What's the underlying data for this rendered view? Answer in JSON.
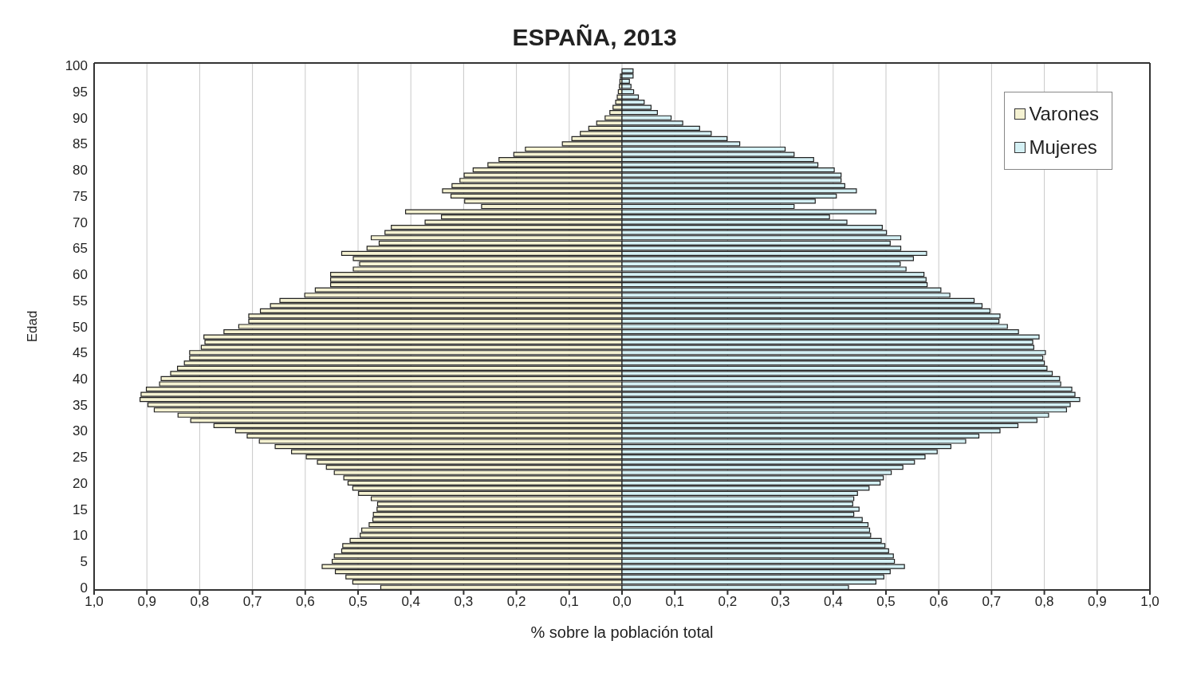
{
  "chart_data": {
    "type": "bar",
    "orientation": "horizontal",
    "stacked": true,
    "title": "ESPAÑA, 2013",
    "xlabel": "% sobre la población total",
    "ylabel": "Edad",
    "categories": [
      "100",
      null,
      null,
      null,
      null,
      "95",
      null,
      null,
      null,
      null,
      "90",
      null,
      null,
      null,
      null,
      "85",
      null,
      null,
      null,
      null,
      "80",
      null,
      null,
      null,
      null,
      "75",
      null,
      null,
      null,
      null,
      "70",
      null,
      null,
      null,
      null,
      "65",
      null,
      null,
      null,
      null,
      "60",
      null,
      null,
      null,
      null,
      "55",
      null,
      null,
      null,
      null,
      "50",
      null,
      null,
      null,
      null,
      "45",
      null,
      null,
      null,
      null,
      "40",
      null,
      null,
      null,
      null,
      "35",
      null,
      null,
      null,
      null,
      "30",
      null,
      null,
      null,
      null,
      "25",
      null,
      null,
      null,
      null,
      "20",
      null,
      null,
      null,
      null,
      "15",
      null,
      null,
      null,
      null,
      "10",
      null,
      null,
      null,
      null,
      "5",
      null,
      null,
      null,
      null,
      "0"
    ],
    "series": [
      {
        "name": "Varones",
        "color": "#f5f2d2",
        "values": [
          null,
          null,
          -0.003,
          -0.004,
          -0.005,
          -0.007,
          -0.009,
          -0.012,
          -0.017,
          -0.023,
          -0.032,
          -0.048,
          -0.063,
          -0.079,
          -0.095,
          -0.113,
          -0.183,
          -0.205,
          -0.233,
          -0.254,
          -0.282,
          -0.299,
          -0.307,
          -0.322,
          -0.34,
          -0.324,
          -0.298,
          -0.266,
          -0.41,
          -0.342,
          -0.373,
          -0.437,
          -0.449,
          -0.475,
          -0.46,
          -0.483,
          -0.531,
          -0.509,
          -0.497,
          -0.509,
          -0.552,
          -0.552,
          -0.552,
          -0.581,
          -0.601,
          -0.648,
          -0.666,
          -0.685,
          -0.707,
          -0.707,
          -0.726,
          -0.754,
          -0.792,
          -0.79,
          -0.797,
          -0.819,
          -0.819,
          -0.829,
          -0.842,
          -0.855,
          -0.873,
          -0.876,
          -0.901,
          -0.911,
          -0.913,
          -0.898,
          -0.886,
          -0.841,
          -0.817,
          -0.773,
          -0.732,
          -0.71,
          -0.687,
          -0.657,
          -0.626,
          -0.598,
          -0.577,
          -0.56,
          -0.545,
          -0.527,
          -0.519,
          -0.51,
          -0.499,
          -0.475,
          -0.463,
          -0.464,
          -0.471,
          -0.472,
          -0.479,
          -0.493,
          -0.496,
          -0.515,
          -0.529,
          -0.531,
          -0.545,
          -0.549,
          -0.568,
          -0.543,
          -0.523,
          -0.51,
          -0.457
        ]
      },
      {
        "name": "Mujeres",
        "color": "#d4f0f4",
        "values": [
          null,
          0.021,
          0.021,
          0.014,
          0.017,
          0.022,
          0.031,
          0.042,
          0.055,
          0.067,
          0.093,
          0.115,
          0.147,
          0.169,
          0.199,
          0.223,
          0.309,
          0.326,
          0.363,
          0.371,
          0.402,
          0.415,
          0.415,
          0.422,
          0.444,
          0.406,
          0.366,
          0.326,
          0.481,
          0.393,
          0.426,
          0.493,
          0.501,
          0.528,
          0.508,
          0.528,
          0.577,
          0.552,
          0.527,
          0.538,
          0.572,
          0.576,
          0.578,
          0.604,
          0.621,
          0.667,
          0.682,
          0.697,
          0.716,
          0.714,
          0.73,
          0.751,
          0.79,
          0.778,
          0.78,
          0.802,
          0.797,
          0.8,
          0.805,
          0.815,
          0.829,
          0.831,
          0.852,
          0.858,
          0.867,
          0.849,
          0.842,
          0.808,
          0.786,
          0.75,
          0.716,
          0.676,
          0.651,
          0.623,
          0.597,
          0.574,
          0.554,
          0.532,
          0.51,
          0.495,
          0.489,
          0.468,
          0.446,
          0.439,
          0.437,
          0.449,
          0.439,
          0.455,
          0.466,
          0.469,
          0.471,
          0.491,
          0.498,
          0.505,
          0.514,
          0.516,
          0.535,
          0.508,
          0.496,
          0.481,
          0.429
        ]
      }
    ],
    "xlim": [
      -1,
      1
    ],
    "xticks": [
      {
        "value": -1,
        "label": "1,0"
      },
      {
        "value": -0.9,
        "label": "0,9"
      },
      {
        "value": -0.8,
        "label": "0,8"
      },
      {
        "value": -0.7,
        "label": "0,7"
      },
      {
        "value": -0.6,
        "label": "0,6"
      },
      {
        "value": -0.5,
        "label": "0,5"
      },
      {
        "value": -0.4,
        "label": "0,4"
      },
      {
        "value": -0.3,
        "label": "0,3"
      },
      {
        "value": -0.2,
        "label": "0,2"
      },
      {
        "value": -0.1,
        "label": "0,1"
      },
      {
        "value": 0,
        "label": "0,0"
      },
      {
        "value": 0.1,
        "label": "0,1"
      },
      {
        "value": 0.2,
        "label": "0,2"
      },
      {
        "value": 0.3,
        "label": "0,3"
      },
      {
        "value": 0.4,
        "label": "0,4"
      },
      {
        "value": 0.5,
        "label": "0,5"
      },
      {
        "value": 0.6,
        "label": "0,6"
      },
      {
        "value": 0.7,
        "label": "0,7"
      },
      {
        "value": 0.8,
        "label": "0,8"
      },
      {
        "value": 0.9,
        "label": "0,9"
      },
      {
        "value": 1,
        "label": "1,0"
      }
    ],
    "grid": "x",
    "legend": "top right"
  }
}
